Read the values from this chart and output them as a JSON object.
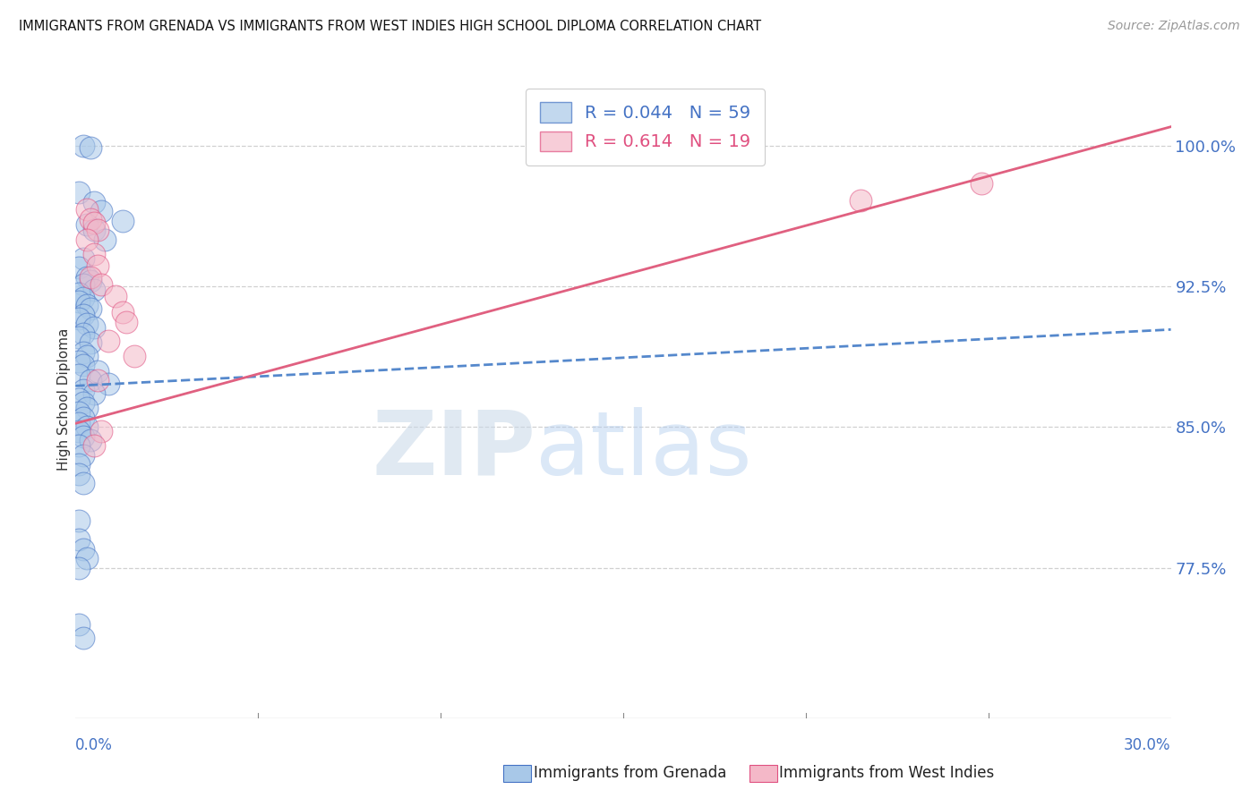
{
  "title": "IMMIGRANTS FROM GRENADA VS IMMIGRANTS FROM WEST INDIES HIGH SCHOOL DIPLOMA CORRELATION CHART",
  "source": "Source: ZipAtlas.com",
  "ylabel": "High School Diploma",
  "ytick_vals": [
    0.775,
    0.85,
    0.925,
    1.0
  ],
  "ytick_labels": [
    "77.5%",
    "85.0%",
    "92.5%",
    "100.0%"
  ],
  "xlim": [
    0.0,
    0.3
  ],
  "ylim": [
    0.695,
    1.035
  ],
  "legend_r1": "0.044",
  "legend_n1": "59",
  "legend_r2": "0.614",
  "legend_n2": "19",
  "color_blue_fill": "#a8c8e8",
  "color_blue_edge": "#4472c4",
  "color_pink_fill": "#f4b8c8",
  "color_pink_edge": "#e05080",
  "color_line_blue": "#5588cc",
  "color_line_pink": "#e06080",
  "color_axis_text": "#4472c4",
  "color_grid": "#d0d0d0",
  "blue_x": [
    0.002,
    0.004,
    0.001,
    0.005,
    0.007,
    0.013,
    0.003,
    0.005,
    0.008,
    0.002,
    0.001,
    0.003,
    0.004,
    0.002,
    0.005,
    0.001,
    0.002,
    0.001,
    0.003,
    0.004,
    0.002,
    0.001,
    0.003,
    0.005,
    0.002,
    0.001,
    0.004,
    0.002,
    0.003,
    0.001,
    0.002,
    0.006,
    0.001,
    0.004,
    0.009,
    0.002,
    0.005,
    0.001,
    0.002,
    0.003,
    0.001,
    0.002,
    0.001,
    0.003,
    0.001,
    0.002,
    0.004,
    0.001,
    0.002,
    0.001,
    0.001,
    0.002,
    0.001,
    0.001,
    0.002,
    0.003,
    0.001,
    0.001,
    0.002
  ],
  "blue_y": [
    1.0,
    0.999,
    0.975,
    0.97,
    0.965,
    0.96,
    0.958,
    0.955,
    0.95,
    0.94,
    0.935,
    0.93,
    0.928,
    0.926,
    0.923,
    0.921,
    0.919,
    0.917,
    0.915,
    0.913,
    0.91,
    0.908,
    0.905,
    0.903,
    0.9,
    0.898,
    0.895,
    0.89,
    0.888,
    0.885,
    0.883,
    0.88,
    0.878,
    0.875,
    0.873,
    0.87,
    0.868,
    0.865,
    0.863,
    0.86,
    0.858,
    0.855,
    0.852,
    0.85,
    0.848,
    0.845,
    0.843,
    0.84,
    0.835,
    0.83,
    0.825,
    0.82,
    0.8,
    0.79,
    0.785,
    0.78,
    0.775,
    0.745,
    0.738
  ],
  "pink_x": [
    0.003,
    0.004,
    0.005,
    0.006,
    0.003,
    0.005,
    0.006,
    0.004,
    0.007,
    0.011,
    0.013,
    0.014,
    0.009,
    0.016,
    0.006,
    0.215,
    0.248,
    0.007,
    0.005
  ],
  "pink_y": [
    0.966,
    0.961,
    0.959,
    0.955,
    0.95,
    0.942,
    0.936,
    0.93,
    0.926,
    0.92,
    0.911,
    0.906,
    0.896,
    0.888,
    0.875,
    0.971,
    0.98,
    0.848,
    0.84
  ],
  "blue_line_x": [
    0.0,
    0.3
  ],
  "blue_line_y": [
    0.872,
    0.902
  ],
  "pink_line_x": [
    0.0,
    0.3
  ],
  "pink_line_y": [
    0.852,
    1.01
  ]
}
